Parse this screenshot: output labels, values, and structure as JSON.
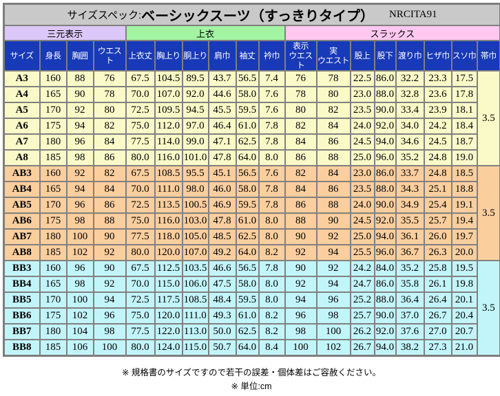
{
  "title": {
    "prefix": "サイズスペック:",
    "main": "ベーシックスーツ（すっきりタイプ）",
    "code": "NRCITA91"
  },
  "colors": {
    "title_bg": "#c9c9c9",
    "header_bg": "#1839b8",
    "header_fg": "#ffffff",
    "grid": "#808080",
    "group_sanmoto": "#dcc8f8",
    "group_uwagi": "#a2f4a2",
    "group_slacks": "#ffc8f0",
    "block_a": "#fafac8",
    "block_ab": "#fbce9e",
    "block_bb": "#c2f5fa"
  },
  "groups": [
    {
      "label": "三元表示",
      "span": 4,
      "color": "#dcc8f8"
    },
    {
      "label": "上衣",
      "span": 6,
      "color": "#a2f4a2"
    },
    {
      "label": "スラックス",
      "span": 8,
      "color": "#ffc8f0"
    }
  ],
  "columns": [
    "サイズ",
    "身長",
    "胸囲",
    "ウエスト",
    "上衣丈",
    "胸上り",
    "胴上り",
    "肩巾",
    "袖丈",
    "衿巾",
    "表示\nウエスト",
    "実\nウエスト",
    "股上",
    "股下",
    "渡り巾",
    "ヒザ巾",
    "スソ巾",
    "帯巾"
  ],
  "blocks": [
    {
      "name": "A",
      "row_color": "#fafac8",
      "obi": "3.5",
      "rows": [
        {
          "size": "A3",
          "values": [
            "160",
            "88",
            "76",
            "67.5",
            "104.5",
            "89.5",
            "43.7",
            "56.5",
            "7.4",
            "76",
            "78",
            "22.5",
            "86.0",
            "32.2",
            "23.3",
            "17.5"
          ]
        },
        {
          "size": "A4",
          "values": [
            "165",
            "90",
            "78",
            "70.0",
            "107.0",
            "92.0",
            "44.6",
            "58.0",
            "7.6",
            "78",
            "80",
            "23.0",
            "88.0",
            "32.8",
            "23.6",
            "17.8"
          ]
        },
        {
          "size": "A5",
          "values": [
            "170",
            "92",
            "80",
            "72.5",
            "109.5",
            "94.5",
            "45.5",
            "59.5",
            "7.6",
            "80",
            "82",
            "23.5",
            "90.0",
            "33.4",
            "23.9",
            "18.1"
          ]
        },
        {
          "size": "A6",
          "values": [
            "175",
            "94",
            "82",
            "75.0",
            "112.0",
            "97.0",
            "46.4",
            "61.0",
            "7.8",
            "82",
            "84",
            "24.0",
            "92.0",
            "34.0",
            "24.2",
            "18.4"
          ]
        },
        {
          "size": "A7",
          "values": [
            "180",
            "96",
            "84",
            "77.5",
            "114.0",
            "99.0",
            "47.1",
            "62.5",
            "7.8",
            "84",
            "86",
            "24.5",
            "94.0",
            "34.6",
            "24.5",
            "18.7"
          ]
        },
        {
          "size": "A8",
          "values": [
            "185",
            "98",
            "86",
            "80.0",
            "116.0",
            "101.0",
            "47.8",
            "64.0",
            "8.0",
            "86",
            "88",
            "25.0",
            "96.0",
            "35.2",
            "24.8",
            "19.0"
          ]
        }
      ]
    },
    {
      "name": "AB",
      "row_color": "#fbce9e",
      "obi": "3.5",
      "rows": [
        {
          "size": "AB3",
          "values": [
            "160",
            "92",
            "82",
            "67.5",
            "108.5",
            "95.5",
            "45.1",
            "56.5",
            "7.6",
            "82",
            "84",
            "23.0",
            "86.0",
            "33.7",
            "24.8",
            "18.5"
          ]
        },
        {
          "size": "AB4",
          "values": [
            "165",
            "94",
            "84",
            "70.0",
            "111.0",
            "98.0",
            "46.0",
            "58.0",
            "7.8",
            "84",
            "86",
            "23.5",
            "88.0",
            "34.3",
            "25.1",
            "18.8"
          ]
        },
        {
          "size": "AB5",
          "values": [
            "170",
            "96",
            "86",
            "72.5",
            "113.5",
            "100.5",
            "46.9",
            "59.5",
            "7.8",
            "86",
            "88",
            "24.0",
            "90.0",
            "34.9",
            "25.4",
            "19.1"
          ]
        },
        {
          "size": "AB6",
          "values": [
            "175",
            "98",
            "88",
            "75.0",
            "116.0",
            "103.0",
            "47.8",
            "61.0",
            "8.0",
            "88",
            "90",
            "24.5",
            "92.0",
            "35.5",
            "25.7",
            "19.4"
          ]
        },
        {
          "size": "AB7",
          "values": [
            "180",
            "100",
            "90",
            "77.5",
            "118.0",
            "105.0",
            "48.5",
            "62.5",
            "8.0",
            "90",
            "92",
            "25.0",
            "94.0",
            "36.1",
            "26.0",
            "19.7"
          ]
        },
        {
          "size": "AB8",
          "values": [
            "185",
            "102",
            "92",
            "80.0",
            "120.0",
            "107.0",
            "49.2",
            "64.0",
            "8.2",
            "92",
            "94",
            "25.5",
            "96.0",
            "36.7",
            "26.3",
            "20.0"
          ]
        }
      ]
    },
    {
      "name": "BB",
      "row_color": "#c2f5fa",
      "obi": "3.5",
      "rows": [
        {
          "size": "BB3",
          "values": [
            "160",
            "96",
            "90",
            "67.5",
            "112.5",
            "103.5",
            "46.6",
            "56.5",
            "7.8",
            "90",
            "92",
            "24.2",
            "84.0",
            "35.2",
            "25.8",
            "19.5"
          ]
        },
        {
          "size": "BB4",
          "values": [
            "165",
            "98",
            "92",
            "70.0",
            "115.0",
            "106.0",
            "47.5",
            "58.0",
            "8.0",
            "92",
            "94",
            "24.7",
            "86.0",
            "35.8",
            "26.1",
            "19.8"
          ]
        },
        {
          "size": "BB5",
          "values": [
            "170",
            "100",
            "94",
            "72.5",
            "117.5",
            "108.5",
            "48.4",
            "59.5",
            "8.0",
            "94",
            "96",
            "25.2",
            "88.0",
            "36.4",
            "26.4",
            "20.1"
          ]
        },
        {
          "size": "BB6",
          "values": [
            "175",
            "102",
            "96",
            "75.0",
            "120.0",
            "111.0",
            "49.3",
            "61.0",
            "8.2",
            "96",
            "98",
            "25.7",
            "90.0",
            "37.0",
            "26.7",
            "20.4"
          ]
        },
        {
          "size": "BB7",
          "values": [
            "180",
            "104",
            "98",
            "77.5",
            "122.0",
            "113.0",
            "50.0",
            "62.5",
            "8.2",
            "98",
            "100",
            "26.2",
            "92.0",
            "37.6",
            "27.0",
            "20.7"
          ]
        },
        {
          "size": "BB8",
          "values": [
            "185",
            "106",
            "100",
            "80.0",
            "124.0",
            "115.0",
            "50.7",
            "64.0",
            "8.4",
            "100",
            "102",
            "26.7",
            "94.0",
            "38.2",
            "27.3",
            "21.0"
          ]
        }
      ]
    }
  ],
  "notes": [
    "※ 規格書のサイズですので若干の誤差・個体差はご容赦ください。",
    "※ 単位:cm"
  ]
}
